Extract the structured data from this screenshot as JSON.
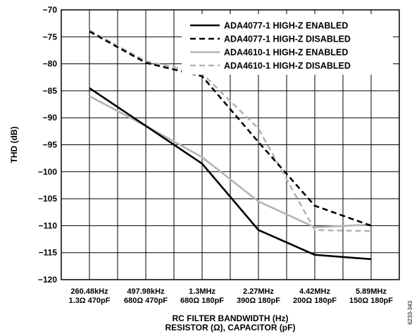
{
  "chart_data": {
    "type": "line",
    "xlabel": "RC FILTER BANDWIDTH (Hz)",
    "xlabel2": "RESISTOR (Ω), CAPACITOR (pF)",
    "ylabel": "THD (dB)",
    "ylim": [
      -120,
      -70
    ],
    "yticks": [
      "−70",
      "−75",
      "−80",
      "−85",
      "−90",
      "−95",
      "−100",
      "−105",
      "−110",
      "−115",
      "−120"
    ],
    "grid": true,
    "legend_position": "top-right",
    "categories": [
      {
        "freq": "260.48kHz",
        "rc": "1.3Ω 470pF"
      },
      {
        "freq": "497.98kHz",
        "rc": "680Ω 470pF"
      },
      {
        "freq": "1.3MHz",
        "rc": "680Ω 180pF"
      },
      {
        "freq": "2.27MHz",
        "rc": "390Ω 180pF"
      },
      {
        "freq": "4.42MHz",
        "rc": "200Ω 180pF"
      },
      {
        "freq": "5.89MHz",
        "rc": "150Ω 180pF"
      }
    ],
    "series": [
      {
        "name": "ADA4077-1 HIGH-Z ENABLED",
        "color": "#000000",
        "dash": "solid",
        "values": [
          -84.5,
          -91.5,
          -98.5,
          -110.8,
          -115.4,
          -116.2
        ]
      },
      {
        "name": "ADA4077-1 HIGH-Z DISABLED",
        "color": "#000000",
        "dash": "dashed",
        "values": [
          -74.0,
          -79.8,
          -82.3,
          -94.5,
          -106.3,
          -110.0
        ]
      },
      {
        "name": "ADA4610-1 HIGH-Z ENABLED",
        "color": "#b4b4b4",
        "dash": "solid",
        "values": [
          -86.0,
          -91.5,
          -97.3,
          -105.5,
          -110.3,
          -109.8
        ]
      },
      {
        "name": "ADA4610-1 HIGH-Z DISABLED",
        "color": "#b4b4b4",
        "dash": "dashed",
        "values": [
          -73.8,
          -79.5,
          -81.8,
          -92.0,
          -110.8,
          -111.0
        ]
      }
    ]
  },
  "figure_id": "6233-343"
}
